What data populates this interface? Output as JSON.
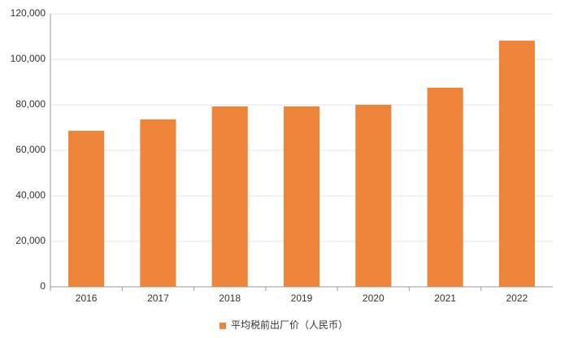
{
  "chart_data": {
    "type": "bar",
    "categories": [
      "2016",
      "2017",
      "2018",
      "2019",
      "2020",
      "2021",
      "2022"
    ],
    "series": [
      {
        "name": "平均税前出厂价（人民币）",
        "color": "#ed843a",
        "values": [
          68600,
          73600,
          79300,
          79300,
          80000,
          87500,
          108200
        ]
      }
    ],
    "ylim": [
      0,
      120000
    ],
    "yticks": [
      0,
      {
        "value": 20000,
        "label": "20,000"
      },
      {
        "value": 40000,
        "label": "40,000"
      },
      {
        "value": 60000,
        "label": "60,000"
      },
      {
        "value": 80000,
        "label": "80,000"
      },
      {
        "value": 100000,
        "label": "100,000"
      },
      {
        "value": 120000,
        "label": "120,000"
      }
    ],
    "grid": true,
    "legend": "bottom"
  }
}
